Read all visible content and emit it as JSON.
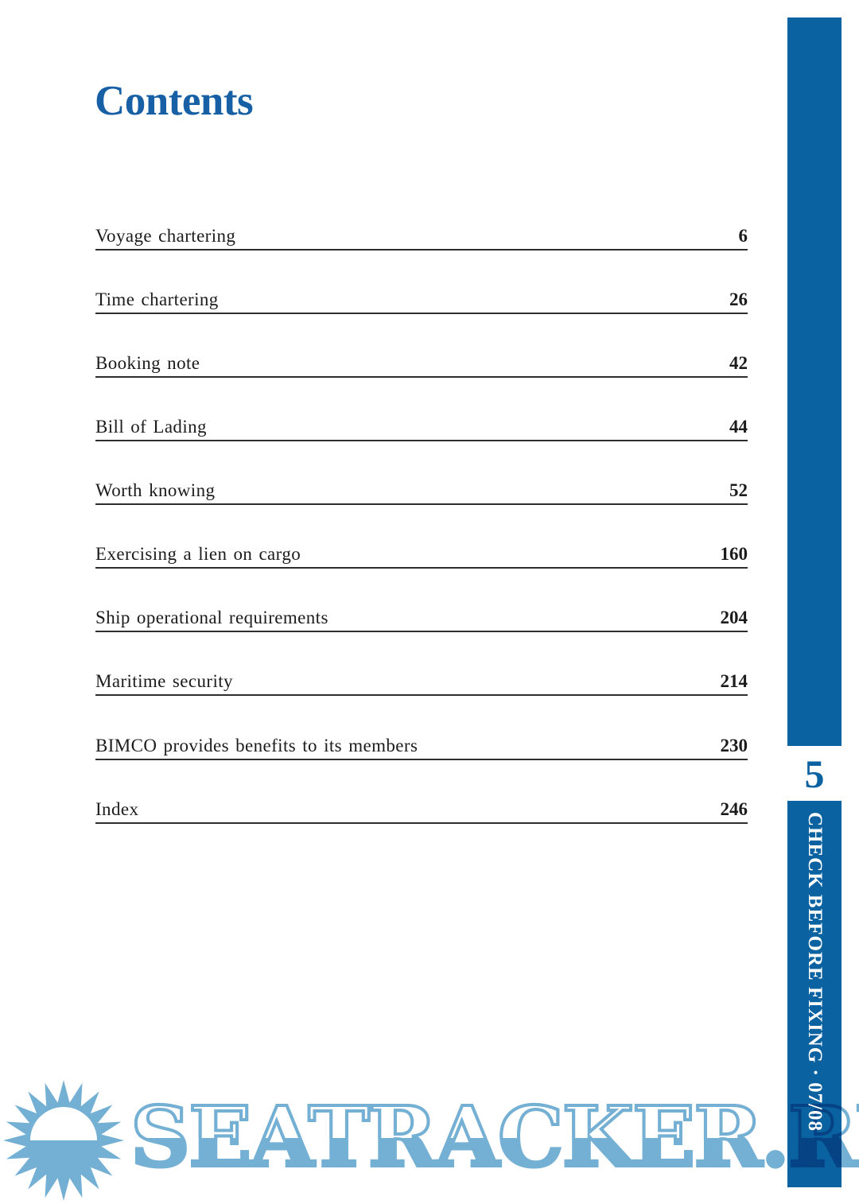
{
  "title": "Contents",
  "toc": {
    "entries": [
      {
        "label": "Voyage chartering",
        "page": "6"
      },
      {
        "label": "Time chartering",
        "page": "26"
      },
      {
        "label": "Booking note",
        "page": "42"
      },
      {
        "label": "Bill of Lading",
        "page": "44"
      },
      {
        "label": "Worth knowing",
        "page": "52"
      },
      {
        "label": "Exercising a lien on cargo",
        "page": "160"
      },
      {
        "label": "Ship operational requirements",
        "page": "204"
      },
      {
        "label": "Maritime security",
        "page": "214"
      },
      {
        "label": "BIMCO provides benefits to its members",
        "page": "230"
      },
      {
        "label": "Index",
        "page": "246"
      }
    ]
  },
  "sidebar": {
    "page_number": "5",
    "spine_text": "CHECK BEFORE FIXING · 07/08"
  },
  "watermark": {
    "text": "SEATRACKER.RU",
    "icon": "sun-icon"
  },
  "colors": {
    "title_blue": "#1760A5",
    "bar_blue": "#0A62A0",
    "watermark_blue": "#74AFD4",
    "rule_dark": "#2E2E2E"
  }
}
